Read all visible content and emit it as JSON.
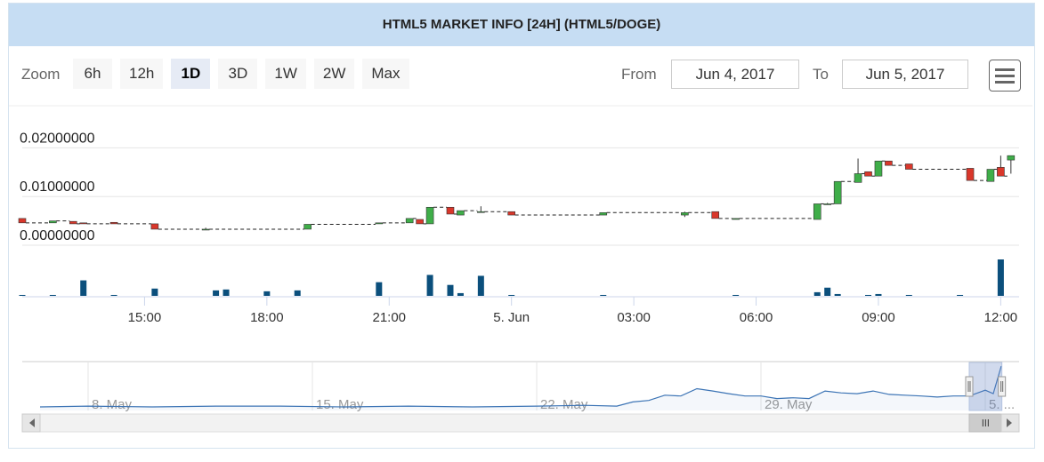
{
  "header": {
    "title": "HTML5 MARKET INFO [24H] (HTML5/DOGE)"
  },
  "toolbar": {
    "zoom_label": "Zoom",
    "zoom_buttons": [
      "6h",
      "12h",
      "1D",
      "3D",
      "1W",
      "2W",
      "Max"
    ],
    "selected_zoom": 2,
    "from_label": "From",
    "from_value": "Jun 4, 2017",
    "to_label": "To",
    "to_value": "Jun 5, 2017"
  },
  "chart_data": {
    "type": "candlestick",
    "x": [
      "2017-06-04T12:00",
      "2017-06-04T12:45",
      "2017-06-04T13:15",
      "2017-06-04T13:30",
      "2017-06-04T14:15",
      "2017-06-04T15:15",
      "2017-06-04T16:30",
      "2017-06-04T19:00",
      "2017-06-04T20:45",
      "2017-06-04T21:30",
      "2017-06-04T21:45",
      "2017-06-04T22:00",
      "2017-06-04T22:30",
      "2017-06-04T22:45",
      "2017-06-04T23:15",
      "2017-06-05T00:00",
      "2017-06-05T02:15",
      "2017-06-05T04:15",
      "2017-06-05T05:00",
      "2017-06-05T05:30",
      "2017-06-05T07:30",
      "2017-06-05T07:45",
      "2017-06-05T08:00",
      "2017-06-05T08:30",
      "2017-06-05T08:45",
      "2017-06-05T09:00",
      "2017-06-05T09:15",
      "2017-06-05T09:45",
      "2017-06-05T11:15",
      "2017-06-05T11:45",
      "2017-06-05T12:00",
      "2017-06-05T12:15"
    ],
    "open": [
      0.0055,
      0.0046,
      0.0049,
      0.0046,
      0.0047,
      0.0044,
      0.0033,
      0.0033,
      0.0044,
      0.0046,
      0.0053,
      0.0044,
      0.0078,
      0.0062,
      0.0069,
      0.0069,
      0.0062,
      0.0062,
      0.0069,
      0.0053,
      0.0053,
      0.0085,
      0.0085,
      0.0129,
      0.0151,
      0.0142,
      0.0173,
      0.0167,
      0.0158,
      0.0131,
      0.016,
      0.0175
    ],
    "high": [
      0.0055,
      0.005,
      0.0049,
      0.0046,
      0.0047,
      0.0044,
      0.0036,
      0.0043,
      0.0046,
      0.0055,
      0.0053,
      0.0078,
      0.0078,
      0.0071,
      0.008,
      0.0069,
      0.0067,
      0.0069,
      0.0069,
      0.0055,
      0.0085,
      0.0087,
      0.0131,
      0.0178,
      0.0151,
      0.0173,
      0.0173,
      0.0167,
      0.0158,
      0.0156,
      0.0184,
      0.0184
    ],
    "low": [
      0.0046,
      0.0046,
      0.0044,
      0.0044,
      0.0044,
      0.0033,
      0.0033,
      0.0033,
      0.0044,
      0.0046,
      0.0044,
      0.0044,
      0.0064,
      0.0062,
      0.0069,
      0.0062,
      0.0062,
      0.0058,
      0.0055,
      0.0053,
      0.0053,
      0.0085,
      0.0085,
      0.0129,
      0.0142,
      0.0142,
      0.0164,
      0.0156,
      0.0133,
      0.0131,
      0.0142,
      0.0147
    ],
    "close": [
      0.0046,
      0.005,
      0.0044,
      0.0044,
      0.0044,
      0.0033,
      0.0033,
      0.0043,
      0.0046,
      0.0055,
      0.0044,
      0.0078,
      0.0064,
      0.0071,
      0.0069,
      0.0062,
      0.0067,
      0.0067,
      0.0055,
      0.0055,
      0.0085,
      0.0085,
      0.0131,
      0.0147,
      0.0142,
      0.0173,
      0.0164,
      0.0156,
      0.0133,
      0.0156,
      0.0142,
      0.0184
    ],
    "up_color": "#3fae49",
    "down_color": "#d9372b",
    "xlim": [
      "2017-06-04T12:00",
      "2017-06-05T12:27"
    ],
    "xticks": [
      {
        "value": "2017-06-04T15:00",
        "label": "15:00"
      },
      {
        "value": "2017-06-04T18:00",
        "label": "18:00"
      },
      {
        "value": "2017-06-04T21:00",
        "label": "21:00"
      },
      {
        "value": "2017-06-05T00:00",
        "label": "5. Jun"
      },
      {
        "value": "2017-06-05T03:00",
        "label": "03:00"
      },
      {
        "value": "2017-06-05T06:00",
        "label": "06:00"
      },
      {
        "value": "2017-06-05T09:00",
        "label": "09:00"
      },
      {
        "value": "2017-06-05T12:00",
        "label": "12:00"
      }
    ],
    "ylim": [
      -0.002,
      0.025
    ],
    "yticks": [
      {
        "value": 0,
        "label": "0.00000000"
      },
      {
        "value": 0.01,
        "label": "0.01000000"
      },
      {
        "value": 0.02,
        "label": "0.02000000"
      }
    ],
    "grid": true,
    "volume": {
      "color": "#0b4f7c",
      "x": [
        "2017-06-04T12:00",
        "2017-06-04T12:45",
        "2017-06-04T13:30",
        "2017-06-04T14:15",
        "2017-06-04T15:15",
        "2017-06-04T16:45",
        "2017-06-04T17:00",
        "2017-06-04T18:00",
        "2017-06-04T18:45",
        "2017-06-04T20:45",
        "2017-06-04T22:00",
        "2017-06-04T22:30",
        "2017-06-04T22:45",
        "2017-06-04T23:15",
        "2017-06-05T00:00",
        "2017-06-05T02:15",
        "2017-06-05T05:30",
        "2017-06-05T07:30",
        "2017-06-05T07:45",
        "2017-06-05T08:00",
        "2017-06-05T08:45",
        "2017-06-05T09:00",
        "2017-06-05T09:45",
        "2017-06-05T11:00",
        "2017-06-05T12:00"
      ],
      "values": [
        1,
        1,
        17,
        1,
        8,
        6,
        7,
        5,
        6,
        15,
        23,
        12,
        3,
        22,
        1,
        1,
        1,
        4,
        9,
        2,
        1,
        2,
        1,
        1,
        40
      ]
    },
    "navigator": {
      "color": "#3c74b5",
      "x": [
        "2017-05-06T12:00",
        "2017-05-08T00:00",
        "2017-05-10T00:00",
        "2017-05-12T00:00",
        "2017-05-14T00:00",
        "2017-05-16T00:00",
        "2017-05-18T00:00",
        "2017-05-20T00:00",
        "2017-05-22T00:00",
        "2017-05-23T12:00",
        "2017-05-24T12:00",
        "2017-05-25T00:00",
        "2017-05-25T12:00",
        "2017-05-26T00:00",
        "2017-05-26T12:00",
        "2017-05-27T00:00",
        "2017-05-27T12:00",
        "2017-05-28T00:00",
        "2017-05-28T12:00",
        "2017-05-29T00:00",
        "2017-05-29T12:00",
        "2017-05-30T00:00",
        "2017-05-30T12:00",
        "2017-05-31T00:00",
        "2017-05-31T12:00",
        "2017-06-01T00:00",
        "2017-06-01T12:00",
        "2017-06-02T00:00",
        "2017-06-02T12:00",
        "2017-06-03T00:00",
        "2017-06-03T12:00",
        "2017-06-04T00:00",
        "2017-06-04T12:00",
        "2017-06-05T00:00",
        "2017-06-05T06:00",
        "2017-06-05T12:00"
      ],
      "values": [
        0.0027,
        0.003,
        0.0027,
        0.003,
        0.003,
        0.0027,
        0.003,
        0.0027,
        0.003,
        0.0033,
        0.003,
        0.0046,
        0.0052,
        0.0072,
        0.0069,
        0.0097,
        0.0088,
        0.0078,
        0.0069,
        0.0069,
        0.0059,
        0.0062,
        0.0059,
        0.0088,
        0.0081,
        0.0078,
        0.0088,
        0.0075,
        0.0072,
        0.0069,
        0.0065,
        0.0069,
        0.0069,
        0.0091,
        0.0078,
        0.0184
      ],
      "xlim": [
        "2017-05-06T12:00",
        "2017-06-05T12:00"
      ],
      "xticks": [
        {
          "value": "2017-05-08T00:00",
          "label": "8. May"
        },
        {
          "value": "2017-05-15T00:00",
          "label": "15. May"
        },
        {
          "value": "2017-05-22T00:00",
          "label": "22. May"
        },
        {
          "value": "2017-05-29T00:00",
          "label": "29. May"
        },
        {
          "value": "2017-06-05T00:00",
          "label": "5. ..."
        }
      ]
    }
  }
}
